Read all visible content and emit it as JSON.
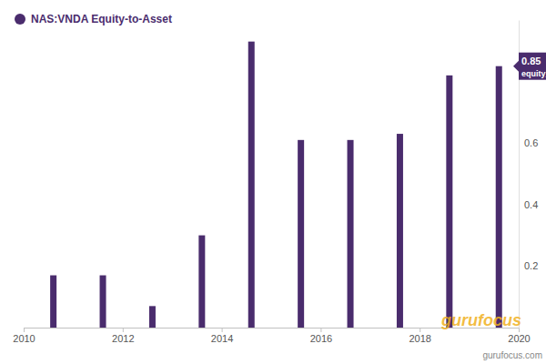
{
  "chart_data": {
    "type": "bar",
    "x": [
      2010.6,
      2011.6,
      2012.6,
      2013.6,
      2014.6,
      2015.6,
      2016.6,
      2017.6,
      2018.6,
      2019.6
    ],
    "series": [
      {
        "name": "NAS:VNDA Equity-to-Asset",
        "color": "#4a2c6d",
        "values": [
          0.17,
          0.17,
          0.07,
          0.3,
          0.93,
          0.61,
          0.61,
          0.63,
          0.82,
          0.85
        ]
      }
    ],
    "xlim": [
      2010,
      2020
    ],
    "xticks": [
      2010,
      2012,
      2014,
      2016,
      2018,
      2020
    ],
    "ylim": [
      0,
      1
    ],
    "yticks": [
      0.2,
      0.4,
      0.6
    ],
    "grid": false,
    "legend": "top-left",
    "annotations": [
      {
        "value": 0.85,
        "label": "0.85",
        "text": "equity_"
      },
      {
        "text": "gurufocus"
      },
      {
        "text": "gurufocus.com"
      }
    ]
  }
}
